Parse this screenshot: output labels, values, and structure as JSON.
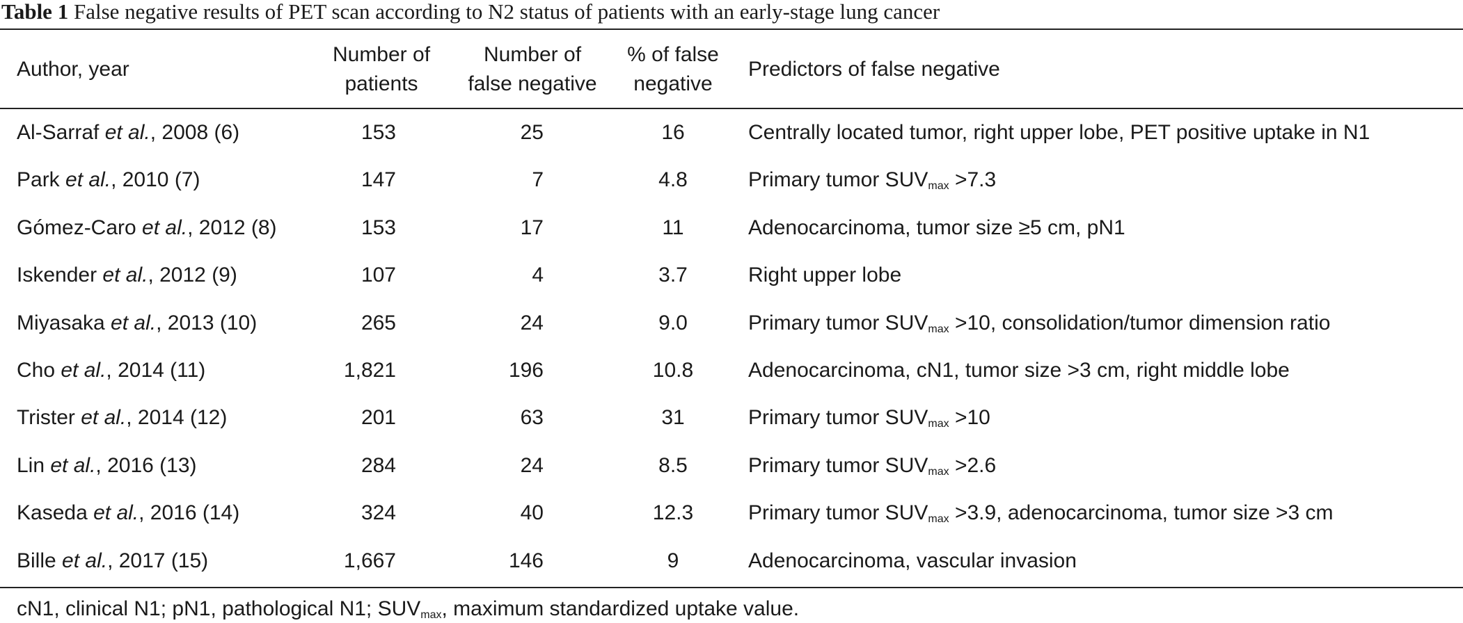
{
  "title": {
    "label": "Table 1",
    "text": "False negative results of PET scan according to N2 status of patients with an early-stage lung cancer"
  },
  "headers": {
    "author": "Author, year",
    "patients_1": "Number of",
    "patients_2": "patients",
    "false_neg_1": "Number of",
    "false_neg_2": "false negative",
    "pct_1": "% of false",
    "pct_2": "negative",
    "predictors": "Predictors of false negative"
  },
  "rows": [
    {
      "author": "Al-Sarraf ",
      "etal": "et al.",
      "year": ", 2008 (6)",
      "patients": "153",
      "false_negative": "25",
      "pct": "16",
      "pred": [
        "Centrally located tumor, right upper lobe, PET positive uptake in N1"
      ]
    },
    {
      "author": "Park ",
      "etal": "et al.",
      "year": ", 2010 (7)",
      "patients": "147",
      "false_negative": "7",
      "pct": "4.8",
      "pred": [
        "Primary tumor SUV",
        "max",
        " >7.3"
      ]
    },
    {
      "author": "Gómez-Caro ",
      "etal": "et al.",
      "year": ", 2012 (8)",
      "patients": "153",
      "false_negative": "17",
      "pct": "11",
      "pred": [
        "Adenocarcinoma, tumor size ≥5 cm, pN1"
      ]
    },
    {
      "author": "Iskender ",
      "etal": "et al.",
      "year": ", 2012 (9)",
      "patients": "107",
      "false_negative": "4",
      "pct": "3.7",
      "pred": [
        "Right upper lobe"
      ]
    },
    {
      "author": "Miyasaka ",
      "etal": "et al.",
      "year": ", 2013 (10)",
      "patients": "265",
      "false_negative": "24",
      "pct": "9.0",
      "pred": [
        "Primary tumor SUV",
        "max",
        " >10, consolidation/tumor dimension ratio"
      ]
    },
    {
      "author": "Cho ",
      "etal": "et al.",
      "year": ", 2014 (11)",
      "patients": "1,821",
      "false_negative": "196",
      "pct": "10.8",
      "pred": [
        "Adenocarcinoma, cN1, tumor size >3 cm, right middle lobe"
      ]
    },
    {
      "author": "Trister ",
      "etal": "et al.",
      "year": ", 2014 (12)",
      "patients": "201",
      "false_negative": "63",
      "pct": "31",
      "pred": [
        "Primary tumor SUV",
        "max",
        " >10"
      ]
    },
    {
      "author": "Lin ",
      "etal": "et al.",
      "year": ", 2016 (13)",
      "patients": "284",
      "false_negative": "24",
      "pct": "8.5",
      "pred": [
        "Primary tumor SUV",
        "max",
        " >2.6"
      ]
    },
    {
      "author": "Kaseda ",
      "etal": "et al.",
      "year": ", 2016 (14)",
      "patients": "324",
      "false_negative": "40",
      "pct": "12.3",
      "pred": [
        "Primary tumor SUV",
        "max",
        " >3.9, adenocarcinoma, tumor size >3 cm"
      ]
    },
    {
      "author": "Bille ",
      "etal": "et al.",
      "year": ", 2017 (15)",
      "patients": "1,667",
      "false_negative": "146",
      "pct": "9",
      "pred": [
        "Adenocarcinoma, vascular invasion"
      ]
    }
  ],
  "footnote": [
    "cN1, clinical N1; pN1, pathological N1; SUV",
    "max",
    ", maximum standardized uptake value."
  ]
}
